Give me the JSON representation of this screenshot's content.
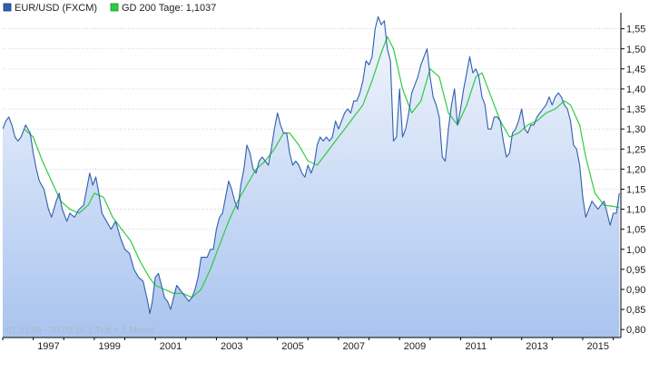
{
  "legend": {
    "series1_label": "EUR/USD (FXCM)",
    "series2_label": "GD 200 Tage: 1,1037"
  },
  "footnote": "01.01.96 - 30.03.16   1 Tick = 1 Monat",
  "colors": {
    "price_line": "#2f5fae",
    "ma_line": "#2ecc40",
    "area_top": "#f4f7fd",
    "area_bottom": "#a9c4ef",
    "grid": "#c8c8c8",
    "axis": "#000000"
  },
  "chart_data": {
    "type": "line",
    "title": "",
    "xlabel": "",
    "ylabel": "",
    "xlim": [
      1996.0,
      2016.25
    ],
    "ylim": [
      0.78,
      1.59
    ],
    "y_ticks": [
      0.8,
      0.85,
      0.9,
      0.95,
      1.0,
      1.05,
      1.1,
      1.15,
      1.2,
      1.25,
      1.3,
      1.35,
      1.4,
      1.45,
      1.5,
      1.55
    ],
    "y_tick_labels": [
      "0,80",
      "0,85",
      "0,90",
      "0,95",
      "1,00",
      "1,05",
      "1,10",
      "1,15",
      "1,20",
      "1,25",
      "1,30",
      "1,35",
      "1,40",
      "1,45",
      "1,50",
      "1,55"
    ],
    "x_tick_labels": [
      "1997",
      "1999",
      "2001",
      "2003",
      "2005",
      "2007",
      "2009",
      "2011",
      "2013",
      "2015"
    ],
    "x_ticks": [
      1997,
      1999,
      2001,
      2003,
      2005,
      2007,
      2009,
      2011,
      2013,
      2015
    ],
    "grid": "horizontal",
    "legend_position": "top-left",
    "series": [
      {
        "name": "EUR/USD (FXCM)",
        "style": "area",
        "points": [
          [
            1996.0,
            1.3
          ],
          [
            1996.1,
            1.32
          ],
          [
            1996.2,
            1.33
          ],
          [
            1996.3,
            1.31
          ],
          [
            1996.4,
            1.28
          ],
          [
            1996.5,
            1.27
          ],
          [
            1996.6,
            1.28
          ],
          [
            1996.75,
            1.31
          ],
          [
            1996.9,
            1.29
          ],
          [
            1997.0,
            1.24
          ],
          [
            1997.1,
            1.2
          ],
          [
            1997.2,
            1.17
          ],
          [
            1997.35,
            1.15
          ],
          [
            1997.5,
            1.1
          ],
          [
            1997.6,
            1.08
          ],
          [
            1997.75,
            1.12
          ],
          [
            1997.85,
            1.14
          ],
          [
            1997.95,
            1.1
          ],
          [
            1998.1,
            1.07
          ],
          [
            1998.2,
            1.09
          ],
          [
            1998.35,
            1.08
          ],
          [
            1998.5,
            1.1
          ],
          [
            1998.65,
            1.11
          ],
          [
            1998.75,
            1.15
          ],
          [
            1998.85,
            1.19
          ],
          [
            1998.95,
            1.16
          ],
          [
            1999.05,
            1.18
          ],
          [
            1999.15,
            1.14
          ],
          [
            1999.25,
            1.09
          ],
          [
            1999.4,
            1.07
          ],
          [
            1999.55,
            1.05
          ],
          [
            1999.7,
            1.07
          ],
          [
            1999.85,
            1.03
          ],
          [
            2000.0,
            1.0
          ],
          [
            2000.15,
            0.99
          ],
          [
            2000.3,
            0.95
          ],
          [
            2000.45,
            0.93
          ],
          [
            2000.6,
            0.92
          ],
          [
            2000.75,
            0.87
          ],
          [
            2000.82,
            0.84
          ],
          [
            2000.9,
            0.87
          ],
          [
            2001.0,
            0.93
          ],
          [
            2001.1,
            0.94
          ],
          [
            2001.2,
            0.91
          ],
          [
            2001.3,
            0.88
          ],
          [
            2001.4,
            0.87
          ],
          [
            2001.5,
            0.85
          ],
          [
            2001.6,
            0.88
          ],
          [
            2001.7,
            0.91
          ],
          [
            2001.8,
            0.9
          ],
          [
            2001.9,
            0.89
          ],
          [
            2002.0,
            0.88
          ],
          [
            2002.1,
            0.87
          ],
          [
            2002.2,
            0.88
          ],
          [
            2002.3,
            0.9
          ],
          [
            2002.4,
            0.93
          ],
          [
            2002.5,
            0.98
          ],
          [
            2002.6,
            0.98
          ],
          [
            2002.7,
            0.98
          ],
          [
            2002.8,
            1.0
          ],
          [
            2002.9,
            1.0
          ],
          [
            2003.0,
            1.05
          ],
          [
            2003.1,
            1.08
          ],
          [
            2003.2,
            1.09
          ],
          [
            2003.3,
            1.13
          ],
          [
            2003.4,
            1.17
          ],
          [
            2003.5,
            1.15
          ],
          [
            2003.6,
            1.12
          ],
          [
            2003.7,
            1.1
          ],
          [
            2003.8,
            1.16
          ],
          [
            2003.9,
            1.2
          ],
          [
            2004.0,
            1.26
          ],
          [
            2004.1,
            1.24
          ],
          [
            2004.2,
            1.2
          ],
          [
            2004.3,
            1.19
          ],
          [
            2004.4,
            1.22
          ],
          [
            2004.5,
            1.23
          ],
          [
            2004.6,
            1.22
          ],
          [
            2004.7,
            1.21
          ],
          [
            2004.8,
            1.25
          ],
          [
            2004.9,
            1.3
          ],
          [
            2005.0,
            1.34
          ],
          [
            2005.1,
            1.31
          ],
          [
            2005.2,
            1.29
          ],
          [
            2005.3,
            1.29
          ],
          [
            2005.4,
            1.24
          ],
          [
            2005.5,
            1.21
          ],
          [
            2005.6,
            1.22
          ],
          [
            2005.7,
            1.21
          ],
          [
            2005.8,
            1.19
          ],
          [
            2005.9,
            1.18
          ],
          [
            2006.0,
            1.21
          ],
          [
            2006.1,
            1.19
          ],
          [
            2006.2,
            1.21
          ],
          [
            2006.3,
            1.26
          ],
          [
            2006.4,
            1.28
          ],
          [
            2006.5,
            1.27
          ],
          [
            2006.6,
            1.28
          ],
          [
            2006.7,
            1.27
          ],
          [
            2006.8,
            1.28
          ],
          [
            2006.9,
            1.32
          ],
          [
            2007.0,
            1.3
          ],
          [
            2007.1,
            1.32
          ],
          [
            2007.2,
            1.34
          ],
          [
            2007.3,
            1.35
          ],
          [
            2007.4,
            1.34
          ],
          [
            2007.5,
            1.37
          ],
          [
            2007.6,
            1.37
          ],
          [
            2007.7,
            1.39
          ],
          [
            2007.8,
            1.42
          ],
          [
            2007.9,
            1.47
          ],
          [
            2008.0,
            1.46
          ],
          [
            2008.1,
            1.48
          ],
          [
            2008.2,
            1.55
          ],
          [
            2008.3,
            1.58
          ],
          [
            2008.4,
            1.56
          ],
          [
            2008.5,
            1.57
          ],
          [
            2008.6,
            1.5
          ],
          [
            2008.7,
            1.47
          ],
          [
            2008.8,
            1.27
          ],
          [
            2008.9,
            1.28
          ],
          [
            2009.0,
            1.4
          ],
          [
            2009.1,
            1.28
          ],
          [
            2009.2,
            1.3
          ],
          [
            2009.3,
            1.34
          ],
          [
            2009.4,
            1.39
          ],
          [
            2009.5,
            1.41
          ],
          [
            2009.6,
            1.43
          ],
          [
            2009.7,
            1.46
          ],
          [
            2009.8,
            1.48
          ],
          [
            2009.9,
            1.5
          ],
          [
            2010.0,
            1.43
          ],
          [
            2010.1,
            1.38
          ],
          [
            2010.2,
            1.36
          ],
          [
            2010.3,
            1.33
          ],
          [
            2010.4,
            1.23
          ],
          [
            2010.5,
            1.22
          ],
          [
            2010.6,
            1.3
          ],
          [
            2010.7,
            1.36
          ],
          [
            2010.8,
            1.4
          ],
          [
            2010.9,
            1.31
          ],
          [
            2011.0,
            1.35
          ],
          [
            2011.1,
            1.4
          ],
          [
            2011.2,
            1.44
          ],
          [
            2011.3,
            1.48
          ],
          [
            2011.4,
            1.44
          ],
          [
            2011.5,
            1.45
          ],
          [
            2011.6,
            1.43
          ],
          [
            2011.7,
            1.38
          ],
          [
            2011.8,
            1.36
          ],
          [
            2011.9,
            1.3
          ],
          [
            2012.0,
            1.3
          ],
          [
            2012.1,
            1.33
          ],
          [
            2012.2,
            1.33
          ],
          [
            2012.3,
            1.32
          ],
          [
            2012.4,
            1.27
          ],
          [
            2012.5,
            1.23
          ],
          [
            2012.6,
            1.24
          ],
          [
            2012.7,
            1.29
          ],
          [
            2012.8,
            1.3
          ],
          [
            2012.9,
            1.32
          ],
          [
            2013.0,
            1.35
          ],
          [
            2013.1,
            1.3
          ],
          [
            2013.2,
            1.29
          ],
          [
            2013.3,
            1.31
          ],
          [
            2013.4,
            1.31
          ],
          [
            2013.5,
            1.33
          ],
          [
            2013.6,
            1.34
          ],
          [
            2013.7,
            1.35
          ],
          [
            2013.8,
            1.36
          ],
          [
            2013.9,
            1.38
          ],
          [
            2014.0,
            1.36
          ],
          [
            2014.1,
            1.38
          ],
          [
            2014.2,
            1.39
          ],
          [
            2014.3,
            1.38
          ],
          [
            2014.4,
            1.36
          ],
          [
            2014.5,
            1.35
          ],
          [
            2014.6,
            1.32
          ],
          [
            2014.7,
            1.26
          ],
          [
            2014.8,
            1.25
          ],
          [
            2014.9,
            1.21
          ],
          [
            2015.0,
            1.13
          ],
          [
            2015.1,
            1.08
          ],
          [
            2015.2,
            1.1
          ],
          [
            2015.3,
            1.12
          ],
          [
            2015.4,
            1.11
          ],
          [
            2015.5,
            1.1
          ],
          [
            2015.6,
            1.11
          ],
          [
            2015.7,
            1.12
          ],
          [
            2015.8,
            1.09
          ],
          [
            2015.9,
            1.06
          ],
          [
            2016.0,
            1.09
          ],
          [
            2016.1,
            1.09
          ],
          [
            2016.2,
            1.14
          ]
        ]
      },
      {
        "name": "GD 200 Tage: 1,1037",
        "style": "line",
        "points": [
          [
            1996.7,
            1.3
          ],
          [
            1997.0,
            1.28
          ],
          [
            1997.3,
            1.22
          ],
          [
            1997.6,
            1.17
          ],
          [
            1997.9,
            1.12
          ],
          [
            1998.2,
            1.1
          ],
          [
            1998.5,
            1.09
          ],
          [
            1998.8,
            1.11
          ],
          [
            1999.0,
            1.14
          ],
          [
            1999.3,
            1.13
          ],
          [
            1999.6,
            1.08
          ],
          [
            1999.9,
            1.05
          ],
          [
            2000.2,
            1.02
          ],
          [
            2000.5,
            0.97
          ],
          [
            2000.8,
            0.93
          ],
          [
            2001.0,
            0.91
          ],
          [
            2001.3,
            0.9
          ],
          [
            2001.6,
            0.89
          ],
          [
            2001.9,
            0.89
          ],
          [
            2002.2,
            0.88
          ],
          [
            2002.5,
            0.9
          ],
          [
            2002.8,
            0.95
          ],
          [
            2003.1,
            1.01
          ],
          [
            2003.4,
            1.07
          ],
          [
            2003.7,
            1.12
          ],
          [
            2004.0,
            1.16
          ],
          [
            2004.3,
            1.2
          ],
          [
            2004.6,
            1.22
          ],
          [
            2004.9,
            1.25
          ],
          [
            2005.2,
            1.29
          ],
          [
            2005.4,
            1.29
          ],
          [
            2005.7,
            1.26
          ],
          [
            2006.0,
            1.22
          ],
          [
            2006.3,
            1.21
          ],
          [
            2006.6,
            1.24
          ],
          [
            2006.9,
            1.27
          ],
          [
            2007.2,
            1.3
          ],
          [
            2007.5,
            1.33
          ],
          [
            2007.8,
            1.36
          ],
          [
            2008.1,
            1.42
          ],
          [
            2008.4,
            1.49
          ],
          [
            2008.6,
            1.53
          ],
          [
            2008.8,
            1.5
          ],
          [
            2009.1,
            1.4
          ],
          [
            2009.4,
            1.34
          ],
          [
            2009.7,
            1.37
          ],
          [
            2010.0,
            1.45
          ],
          [
            2010.3,
            1.43
          ],
          [
            2010.6,
            1.34
          ],
          [
            2010.9,
            1.31
          ],
          [
            2011.2,
            1.36
          ],
          [
            2011.5,
            1.43
          ],
          [
            2011.7,
            1.44
          ],
          [
            2012.0,
            1.38
          ],
          [
            2012.3,
            1.32
          ],
          [
            2012.6,
            1.28
          ],
          [
            2012.9,
            1.29
          ],
          [
            2013.2,
            1.31
          ],
          [
            2013.5,
            1.32
          ],
          [
            2013.8,
            1.34
          ],
          [
            2014.1,
            1.35
          ],
          [
            2014.4,
            1.37
          ],
          [
            2014.6,
            1.36
          ],
          [
            2014.9,
            1.31
          ],
          [
            2015.1,
            1.23
          ],
          [
            2015.4,
            1.14
          ],
          [
            2015.7,
            1.11
          ],
          [
            2016.0,
            1.107
          ],
          [
            2016.2,
            1.104
          ]
        ]
      }
    ]
  }
}
